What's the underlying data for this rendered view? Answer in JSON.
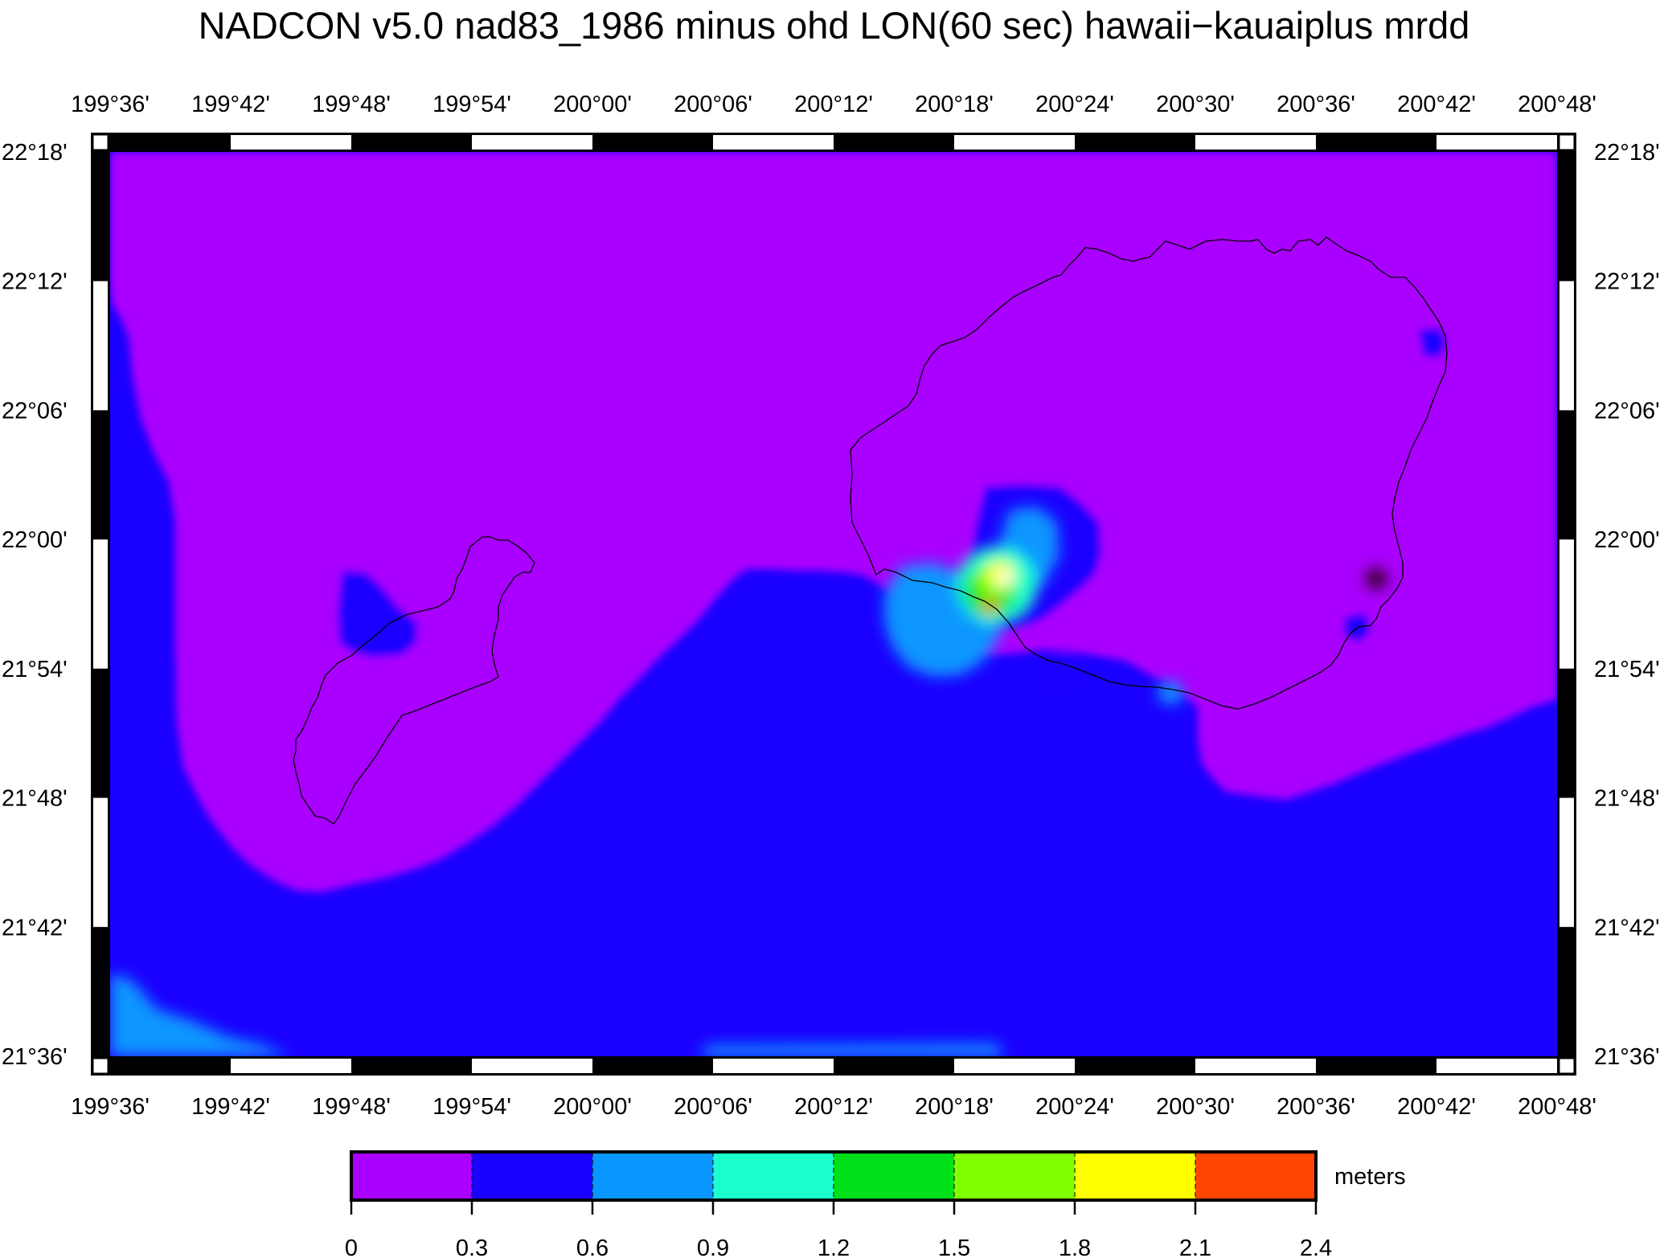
{
  "title": "NADCON v5.0 nad83_1986 minus ohd LON(60 sec) hawaii−kauaiplus mrdd",
  "map": {
    "longitude_ticks": [
      "199°36'",
      "199°42'",
      "199°48'",
      "199°54'",
      "200°00'",
      "200°06'",
      "200°12'",
      "200°18'",
      "200°24'",
      "200°30'",
      "200°36'",
      "200°42'",
      "200°48'"
    ],
    "latitude_ticks": [
      "22°18'",
      "22°12'",
      "22°06'",
      "22°00'",
      "21°54'",
      "21°48'",
      "21°42'",
      "21°36'"
    ],
    "colors": {
      "magenta": "#aa00ff",
      "blue": "#1a00ff",
      "light_blue": "#0a96ff",
      "cyan": "#1affcc",
      "green": "#00e01a",
      "yellow_green": "#80ff00",
      "yellow": "#ffff00",
      "orange": "#ff4500"
    }
  },
  "colorbar": {
    "unit": "meters",
    "ticks": [
      "0",
      "0.3",
      "0.6",
      "0.9",
      "1.2",
      "1.5",
      "1.8",
      "2.1",
      "2.4"
    ],
    "colors": [
      "#aa00ff",
      "#1a00ff",
      "#0a96ff",
      "#1affcc",
      "#00e01a",
      "#80ff00",
      "#ffff00",
      "#ff4500"
    ]
  }
}
